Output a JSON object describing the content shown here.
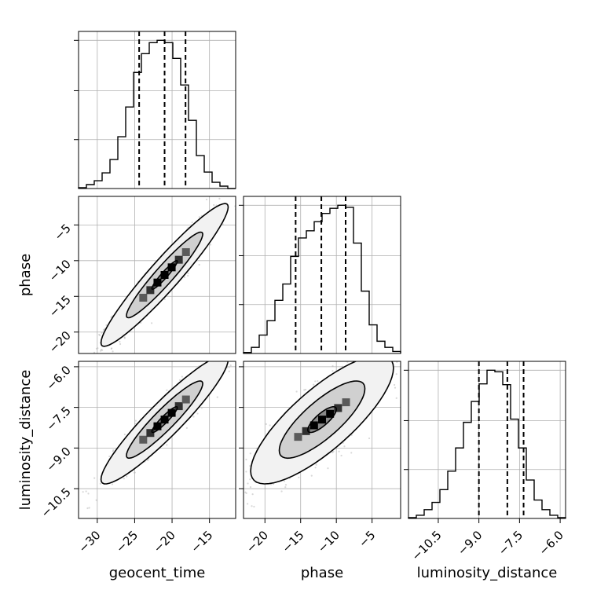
{
  "chart_data": {
    "type": "corner",
    "parameters": [
      "geocent_time",
      "phase",
      "luminosity_distance"
    ],
    "axis_labels": {
      "x": [
        "geocent_time",
        "phase",
        "luminosity_distance"
      ],
      "y": [
        "phase",
        "luminosity_distance"
      ]
    },
    "ranges": {
      "geocent_time": [
        -32.5,
        -11.5
      ],
      "phase": [
        -23.0,
        -1.0
      ],
      "luminosity_distance": [
        -11.6,
        -5.8
      ]
    },
    "ticks": {
      "geocent_time": {
        "values": [
          -30,
          -25,
          -20,
          -15
        ],
        "labels": [
          "−30",
          "−25",
          "−20",
          "−15"
        ]
      },
      "phase": {
        "values": [
          -20,
          -15,
          -10,
          -5
        ],
        "labels": [
          "−20",
          "−15",
          "−10",
          "−5"
        ]
      },
      "luminosity_distance": {
        "values": [
          -10.5,
          -9.0,
          -7.5,
          -6.0
        ],
        "labels": [
          "−10.5",
          "−9.0",
          "−7.5",
          "−6.0"
        ]
      }
    },
    "quantiles": {
      "geocent_time": [
        -24.4,
        -21.0,
        -18.2
      ],
      "phase": [
        -15.7,
        -12.1,
        -8.7
      ],
      "luminosity_distance": [
        -9.0,
        -7.95,
        -7.35
      ]
    },
    "histograms": {
      "geocent_time": {
        "edges": [
          -32.5,
          -31.45,
          -30.4,
          -29.35,
          -28.3,
          -27.25,
          -26.2,
          -25.15,
          -24.1,
          -23.05,
          -22.0,
          -20.95,
          -19.9,
          -18.85,
          -17.8,
          -16.75,
          -15.7,
          -14.65,
          -13.6,
          -12.55,
          -11.5
        ],
        "counts": [
          1,
          5,
          10,
          20,
          37,
          66,
          104,
          148,
          172,
          186,
          189,
          186,
          166,
          132,
          87,
          42,
          21,
          8,
          3,
          0
        ]
      },
      "phase": {
        "edges": [
          -23.0,
          -21.9,
          -20.8,
          -19.7,
          -18.6,
          -17.5,
          -16.4,
          -15.3,
          -14.2,
          -13.1,
          -12.0,
          -10.9,
          -9.8,
          -8.7,
          -7.6,
          -6.5,
          -5.4,
          -4.3,
          -3.2,
          -2.1,
          -1.0
        ],
        "counts": [
          1,
          6,
          18,
          32,
          52,
          68,
          95,
          113,
          120,
          129,
          137,
          142,
          145,
          143,
          108,
          61,
          28,
          12,
          6,
          2
        ]
      },
      "luminosity_distance": {
        "edges": [
          -11.6,
          -11.31,
          -11.02,
          -10.73,
          -10.44,
          -10.15,
          -9.86,
          -9.57,
          -9.28,
          -8.99,
          -8.7,
          -8.41,
          -8.12,
          -7.83,
          -7.54,
          -7.25,
          -6.96,
          -6.67,
          -6.38,
          -6.09,
          -5.8
        ],
        "counts": [
          1,
          4,
          11,
          20,
          36,
          59,
          88,
          120,
          146,
          168,
          185,
          183,
          167,
          124,
          88,
          48,
          23,
          11,
          4,
          1
        ]
      }
    },
    "joint": [
      {
        "x": "geocent_time",
        "y": "phase",
        "mean": [
          -21.0,
          -12.0
        ],
        "sd": [
          3.4,
          4.0
        ],
        "rho": 0.95,
        "contour_levels": [
          0.5,
          1.5,
          2.5
        ]
      },
      {
        "x": "geocent_time",
        "y": "luminosity_distance",
        "mean": [
          -21.0,
          -7.95
        ],
        "sd": [
          3.4,
          0.95
        ],
        "rho": 0.93,
        "contour_levels": [
          0.5,
          1.5,
          2.5
        ]
      },
      {
        "x": "phase",
        "y": "luminosity_distance",
        "mean": [
          -12.0,
          -7.95
        ],
        "sd": [
          4.0,
          0.95
        ],
        "rho": 0.8,
        "contour_levels": [
          0.5,
          1.5,
          2.5
        ]
      }
    ],
    "grid": true,
    "colors": {
      "line": "#000000",
      "grid": "#b0b0b0",
      "scatter": "#b8b8b8",
      "density_dark": "#000000"
    }
  }
}
